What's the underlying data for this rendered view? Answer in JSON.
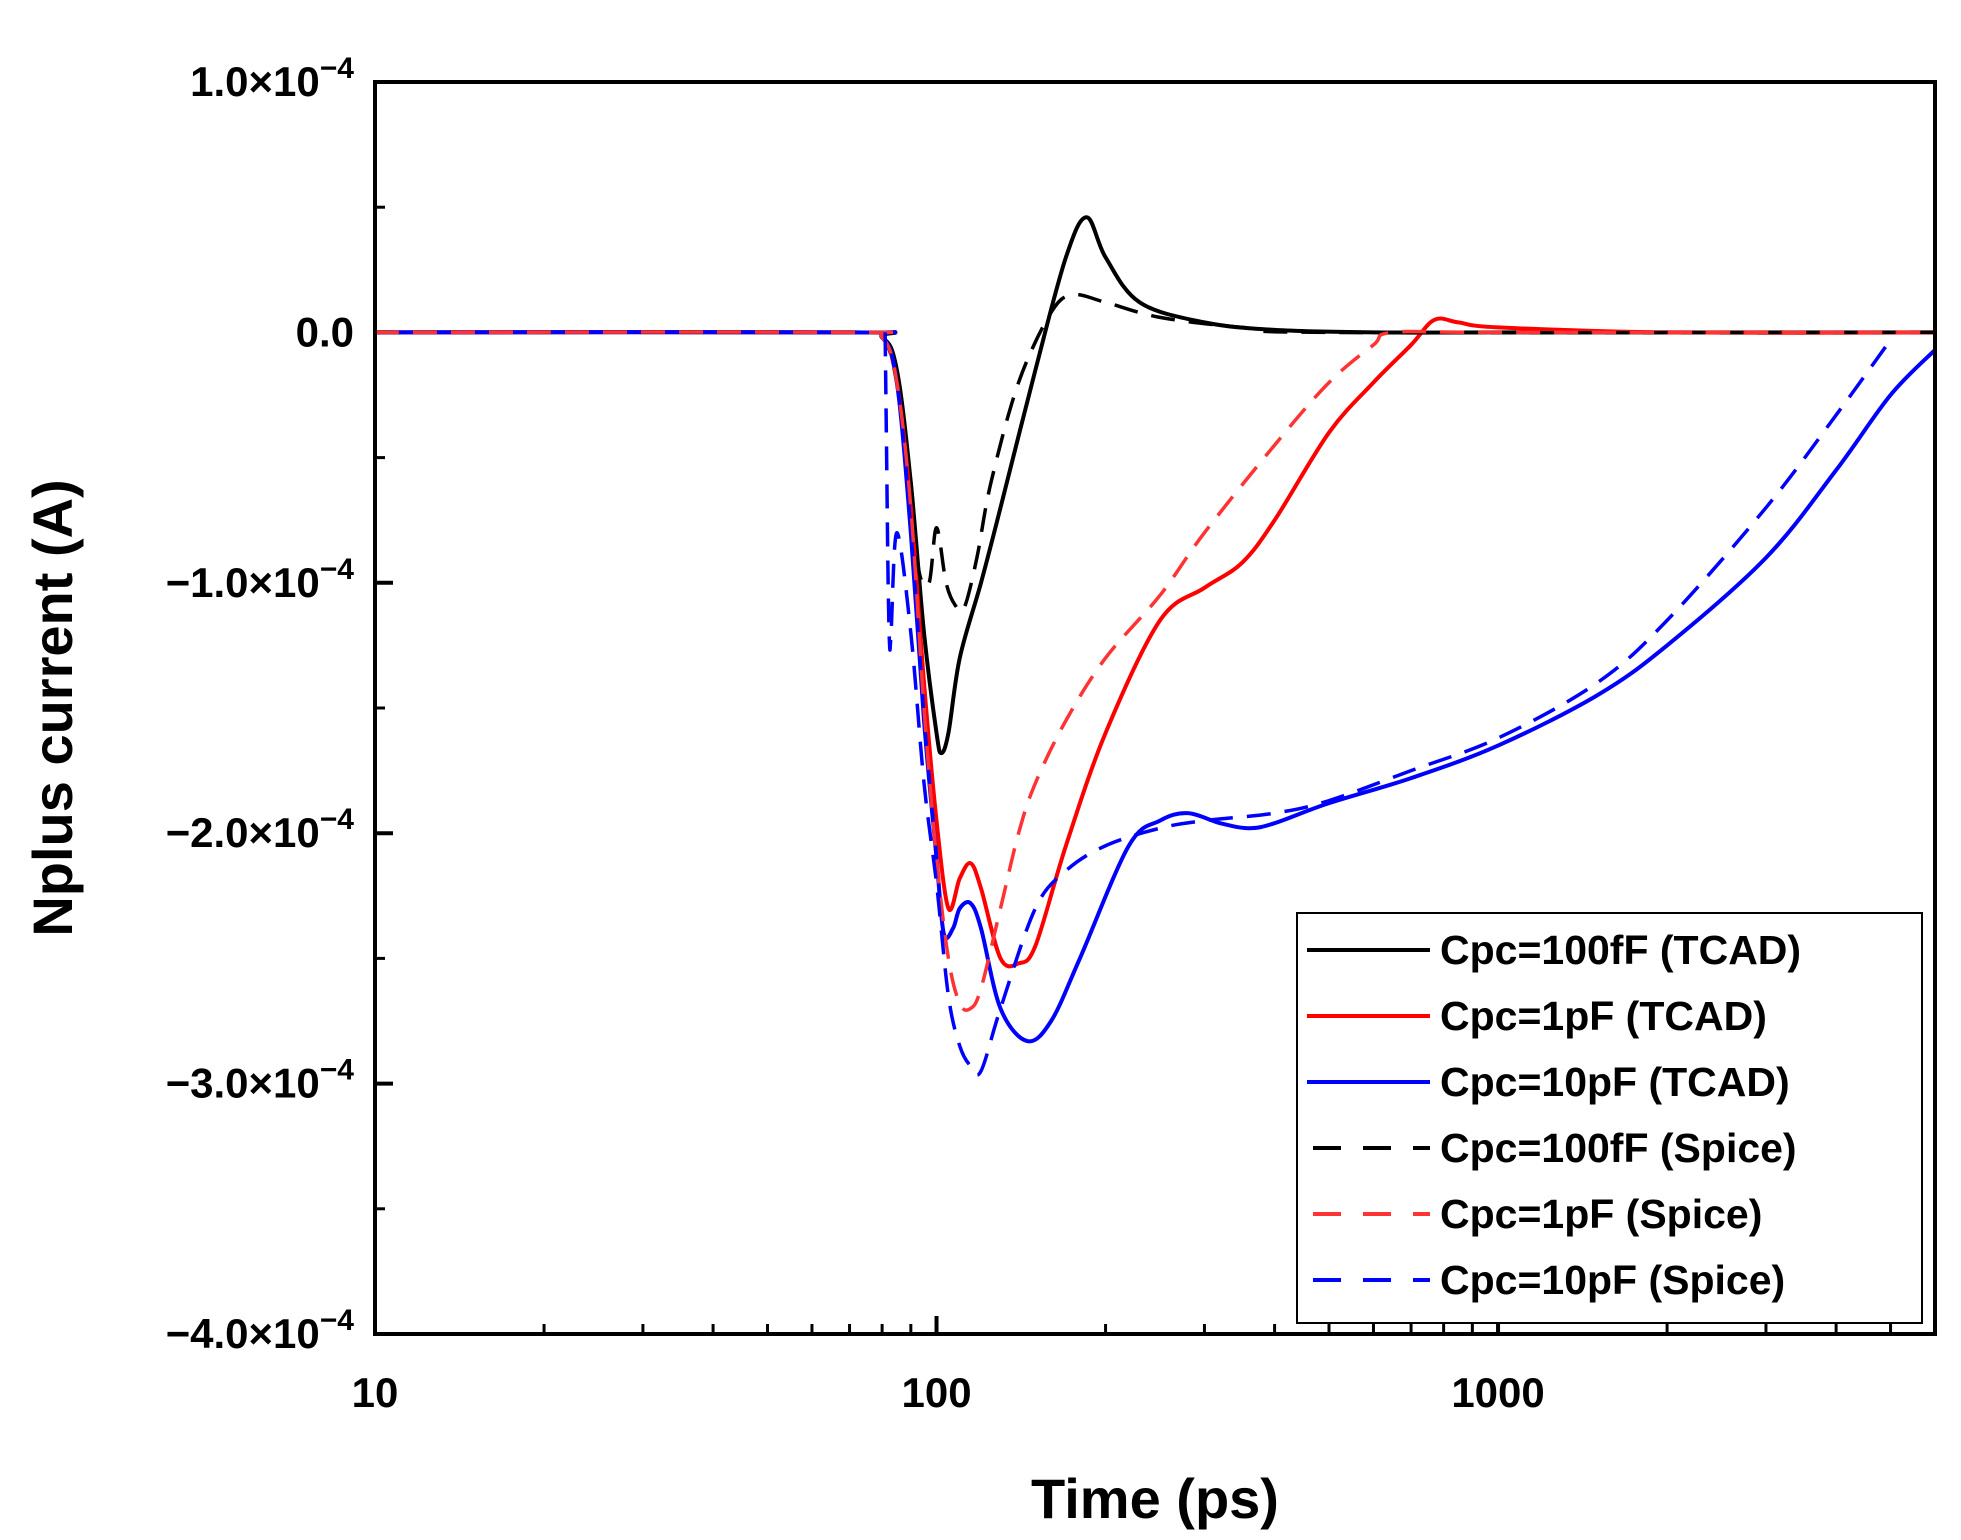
{
  "chart_data": {
    "type": "line",
    "title": "",
    "xlabel": "Time (ps)",
    "ylabel": "Nplus current (A)",
    "xscale": "log",
    "xlim": [
      10,
      6000
    ],
    "ylim": [
      -0.0004,
      0.0001
    ],
    "xticks": [
      {
        "value": 10,
        "label": "10"
      },
      {
        "value": 100,
        "label": "100"
      },
      {
        "value": 1000,
        "label": "1000"
      }
    ],
    "yticks": [
      {
        "value": 0.0001,
        "mantissa": "1.0×10",
        "exp": "−4"
      },
      {
        "value": 0,
        "mantissa": "0.0",
        "exp": ""
      },
      {
        "value": -0.0001,
        "mantissa": "−1.0×10",
        "exp": "−4"
      },
      {
        "value": -0.0002,
        "mantissa": "−2.0×10",
        "exp": "−4"
      },
      {
        "value": -0.0003,
        "mantissa": "−3.0×10",
        "exp": "−4"
      },
      {
        "value": -0.0004,
        "mantissa": "−4.0×10",
        "exp": "−4"
      }
    ],
    "legend_position": "bottom-right",
    "series": [
      {
        "name": "Cpc=100fF  (TCAD)",
        "color": "#000000",
        "dash": "solid",
        "x": [
          10,
          70,
          80,
          85,
          90,
          95,
          100,
          102,
          105,
          110,
          120,
          130,
          150,
          170,
          185,
          200,
          230,
          300,
          400,
          600,
          1000,
          2000,
          6000
        ],
        "y": [
          0,
          0,
          -2e-06,
          -1.5e-05,
          -6e-05,
          -0.00012,
          -0.00016,
          -0.000168,
          -0.00016,
          -0.00013,
          -0.0001,
          -7e-05,
          -1.5e-05,
          3e-05,
          4.6e-05,
          3e-05,
          1.2e-05,
          4e-06,
          1e-06,
          0,
          0,
          0,
          0
        ]
      },
      {
        "name": "Cpc=1pF (TCAD)",
        "color": "#ff0000",
        "dash": "solid",
        "x": [
          10,
          70,
          80,
          85,
          90,
          95,
          100,
          105,
          110,
          115,
          120,
          130,
          140,
          150,
          170,
          200,
          250,
          300,
          350,
          400,
          500,
          600,
          700,
          770,
          850,
          1000,
          2000,
          6000
        ],
        "y": [
          0,
          0,
          -2e-06,
          -2e-05,
          -7e-05,
          -0.00014,
          -0.000195,
          -0.00023,
          -0.000218,
          -0.000212,
          -0.000222,
          -0.00025,
          -0.000252,
          -0.000245,
          -0.000205,
          -0.00016,
          -0.000115,
          -0.000102,
          -9.2e-05,
          -7.5e-05,
          -4e-05,
          -2e-05,
          -5e-06,
          5e-06,
          4e-06,
          2e-06,
          0,
          0
        ]
      },
      {
        "name": "Cpc=10pF (TCAD)",
        "color": "#0000ff",
        "dash": "solid",
        "x": [
          10,
          70,
          80,
          85,
          90,
          95,
          100,
          103,
          107,
          110,
          115,
          120,
          130,
          145,
          160,
          180,
          220,
          250,
          280,
          320,
          360,
          400,
          500,
          700,
          1000,
          1500,
          2000,
          3000,
          4000,
          5000,
          6000
        ],
        "y": [
          0,
          0,
          -2e-06,
          -2e-05,
          -8e-05,
          -0.000155,
          -0.00021,
          -0.00024,
          -0.000238,
          -0.00023,
          -0.000228,
          -0.000238,
          -0.00027,
          -0.000283,
          -0.000275,
          -0.00025,
          -0.000205,
          -0.000195,
          -0.000192,
          -0.000196,
          -0.000198,
          -0.000196,
          -0.000188,
          -0.000178,
          -0.000165,
          -0.000145,
          -0.000125,
          -9e-05,
          -5.5e-05,
          -2.5e-05,
          -7e-06
        ]
      },
      {
        "name": "Cpc=100fF (Spice)",
        "color": "#000000",
        "dash": "dashed",
        "x": [
          10,
          70,
          80,
          85,
          90,
          93,
          97,
          100,
          104,
          108,
          112,
          118,
          125,
          140,
          160,
          175,
          200,
          250,
          350,
          500,
          6000
        ],
        "y": [
          0,
          0,
          -2e-06,
          -2e-05,
          -6e-05,
          -9.5e-05,
          -0.0001,
          -7.8e-05,
          -0.0001,
          -0.000109,
          -0.00011,
          -9e-05,
          -6e-05,
          -2e-05,
          8e-06,
          1.5e-05,
          1.2e-05,
          6e-06,
          2e-06,
          0,
          0
        ]
      },
      {
        "name": "Cpc=1pF (Spice)",
        "color": "#ff3333",
        "dash": "dashed",
        "x": [
          10,
          70,
          80,
          85,
          90,
          95,
          100,
          105,
          110,
          115,
          120,
          130,
          140,
          150,
          170,
          200,
          250,
          300,
          400,
          500,
          600,
          650,
          1000,
          6000
        ],
        "y": [
          0,
          0,
          -2e-06,
          -2e-05,
          -7e-05,
          -0.00015,
          -0.00021,
          -0.00025,
          -0.000268,
          -0.00027,
          -0.000262,
          -0.00023,
          -0.0002,
          -0.00018,
          -0.000155,
          -0.00013,
          -0.000105,
          -8e-05,
          -4.5e-05,
          -2e-05,
          -5e-06,
          0,
          0,
          0
        ]
      },
      {
        "name": "Cpc=10pF (Spice)",
        "color": "#0000ff",
        "dash": "dashed",
        "x": [
          81,
          81.5,
          82,
          82.5,
          83,
          85,
          90,
          95,
          100,
          105,
          110,
          115,
          120,
          130,
          150,
          170,
          200,
          250,
          300,
          400,
          500,
          700,
          1000,
          1500,
          2000,
          3000,
          4000,
          5000
        ],
        "y": [
          0,
          -5e-05,
          -0.0001,
          -0.000125,
          -0.00012,
          -8e-05,
          -0.00012,
          -0.00018,
          -0.00022,
          -0.000265,
          -0.000285,
          -0.000293,
          -0.000295,
          -0.00027,
          -0.00023,
          -0.000215,
          -0.000205,
          -0.000198,
          -0.000195,
          -0.000192,
          -0.000187,
          -0.000175,
          -0.000162,
          -0.00014,
          -0.000115,
          -7e-05,
          -3.3e-05,
          -3e-06
        ]
      }
    ]
  }
}
